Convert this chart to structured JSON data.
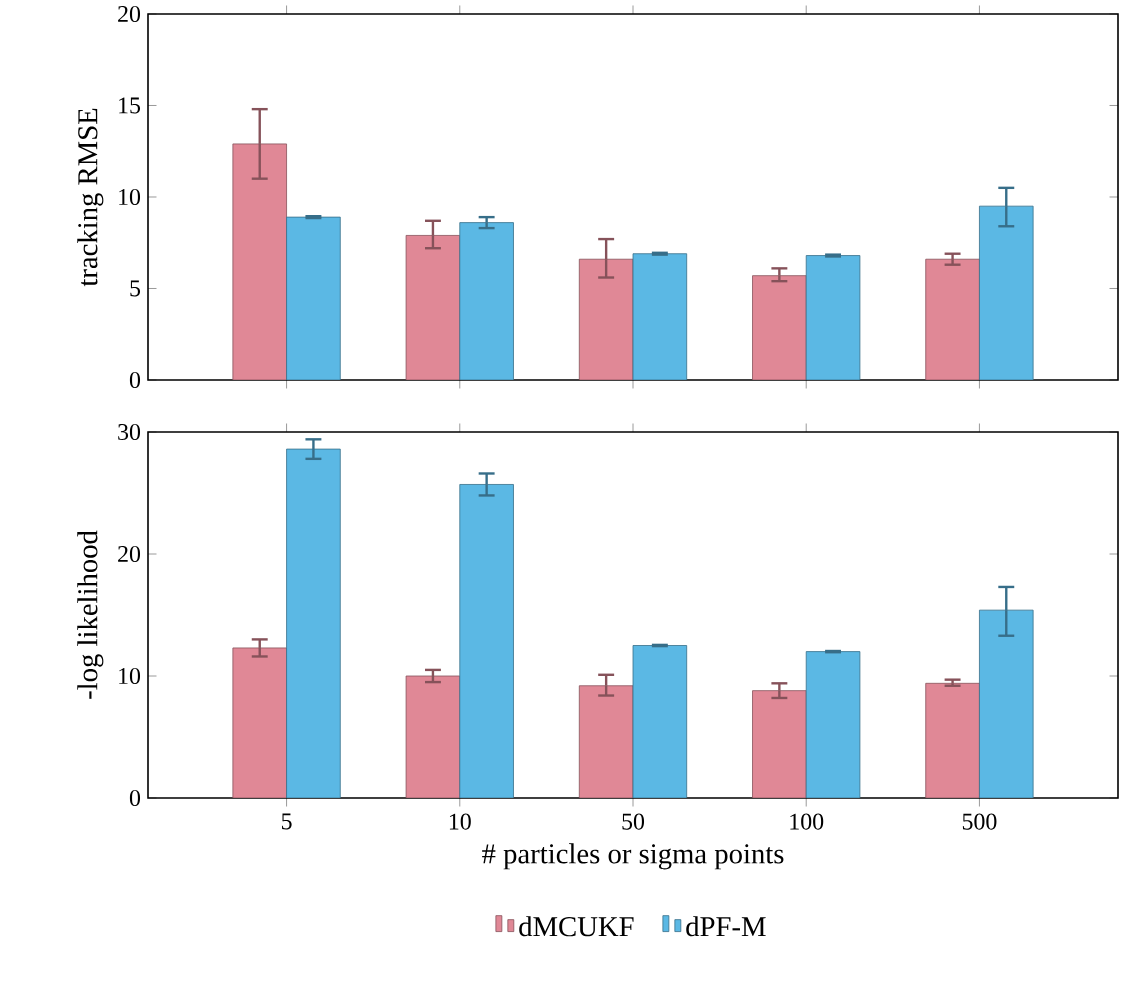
{
  "chart_data": [
    {
      "type": "bar",
      "categories": [
        "5",
        "10",
        "50",
        "100",
        "500"
      ],
      "ylabel": "tracking RMSE",
      "ylim": [
        0,
        20
      ],
      "yticks": [
        0,
        5,
        10,
        15,
        20
      ],
      "tick_labels": "y",
      "series": [
        {
          "color": "#e08896",
          "values": [
            12.9,
            7.9,
            6.6,
            5.7,
            6.6
          ],
          "errors": [
            [
              11.0,
              14.8
            ],
            [
              7.2,
              8.7
            ],
            [
              5.6,
              7.7
            ],
            [
              5.4,
              6.1
            ],
            [
              6.3,
              6.9
            ]
          ]
        },
        {
          "color": "#5bb8e4",
          "values": [
            8.9,
            8.6,
            6.9,
            6.8,
            9.5
          ],
          "errors": [
            0.05,
            [
              8.3,
              8.9
            ],
            0.05,
            0.05,
            [
              8.4,
              10.5
            ]
          ]
        }
      ]
    },
    {
      "type": "bar",
      "categories": [
        "5",
        "10",
        "50",
        "100",
        "500"
      ],
      "xlabel": "# particles or sigma points",
      "ylabel": "-log likelihood",
      "ylim": [
        0,
        30
      ],
      "yticks": [
        0,
        10,
        20,
        30
      ],
      "legend": "bottom",
      "series": [
        {
          "name": "dMCUKF",
          "color": "#e08896",
          "values": [
            12.3,
            10.0,
            9.2,
            8.8,
            9.4
          ],
          "errors": [
            [
              11.6,
              13.0
            ],
            [
              9.5,
              10.5
            ],
            [
              8.4,
              10.1
            ],
            [
              8.2,
              9.4
            ],
            [
              9.2,
              9.7
            ]
          ]
        },
        {
          "name": "dPF-M",
          "color": "#5bb8e4",
          "values": [
            28.6,
            25.7,
            12.5,
            12.0,
            15.4
          ],
          "errors": [
            [
              27.8,
              29.4
            ],
            [
              24.8,
              26.6
            ],
            0.05,
            0.05,
            [
              13.3,
              17.3
            ]
          ]
        }
      ]
    }
  ]
}
